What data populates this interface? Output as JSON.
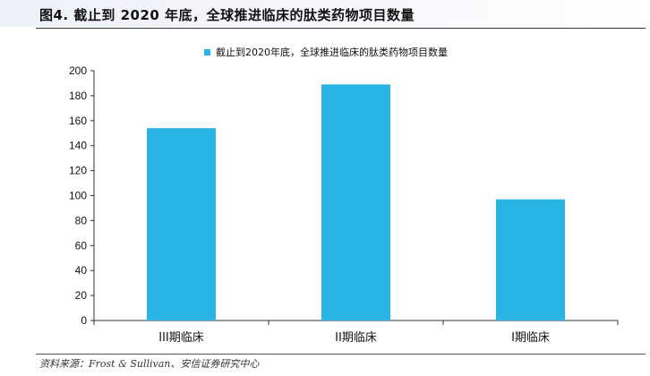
{
  "figure": {
    "title": "图4. 截止到 2020 年底，全球推进临床的肽类药物项目数量"
  },
  "source": {
    "note": "资料来源：Frost & Sullivan、安信证券研究中心"
  },
  "colors": {
    "bar": "#29b4e5",
    "axis": "#333333"
  },
  "chart_data": {
    "type": "bar",
    "categories": [
      "III期临床",
      "II期临床",
      "I期临床"
    ],
    "series": [
      {
        "name": "截止到2020年底，全球推进临床的肽类药物项目数量",
        "values": [
          154,
          189,
          97
        ]
      }
    ],
    "ylim": [
      0,
      200
    ],
    "yticks": [
      0,
      20,
      40,
      60,
      80,
      100,
      120,
      140,
      160,
      180,
      200
    ],
    "grid": false,
    "legend_position": "top-center"
  }
}
